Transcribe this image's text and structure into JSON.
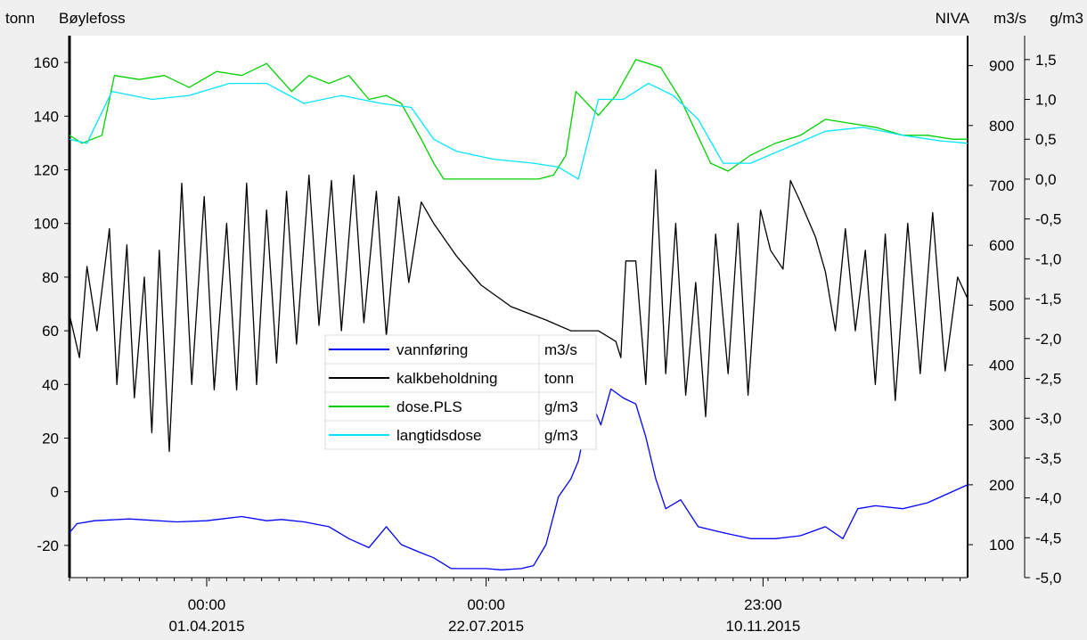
{
  "header": {
    "left_unit": "tonn",
    "site_name": "Bøylefoss",
    "source": "NIVA",
    "mid_unit": "m3/s",
    "right_unit": "g/m3"
  },
  "chart_data": {
    "type": "line",
    "title": "Bøylefoss",
    "x_range": [
      "2015-02-05",
      "2016-01-31"
    ],
    "x_ticks": [
      {
        "date": "2015-04-01",
        "time_label": "00:00",
        "date_label": "01.04.2015"
      },
      {
        "date": "2015-07-22",
        "time_label": "00:00",
        "date_label": "22.07.2015"
      },
      {
        "date": "2015-11-10",
        "time_label": "23:00",
        "date_label": "10.11.2015"
      }
    ],
    "axes": {
      "left": {
        "unit": "tonn",
        "range": [
          -32,
          170
        ],
        "ticks": [
          -20,
          0,
          20,
          40,
          60,
          80,
          100,
          120,
          140,
          160
        ],
        "tick_labels": [
          "-20",
          "0",
          "20",
          "40",
          "60",
          "80",
          "100",
          "120",
          "140",
          "160"
        ]
      },
      "mid": {
        "unit": "m3/s",
        "range": [
          45,
          950
        ],
        "ticks": [
          100,
          200,
          300,
          400,
          500,
          600,
          700,
          800,
          900
        ],
        "tick_labels": [
          "100",
          "200",
          "300",
          "400",
          "500",
          "600",
          "700",
          "800",
          "900"
        ]
      },
      "right": {
        "unit": "g/m3",
        "range": [
          -5.0,
          1.8
        ],
        "ticks": [
          -5.0,
          -4.5,
          -4.0,
          -3.5,
          -3.0,
          -2.5,
          -2.0,
          -1.5,
          -1.0,
          -0.5,
          0.0,
          0.5,
          1.0,
          1.5
        ],
        "tick_labels": [
          "-5,0",
          "-4,5",
          "-4,0",
          "-3,5",
          "-3,0",
          "-2,5",
          "-2,0",
          "-1,5",
          "-1,0",
          "-0,5",
          "0,0",
          "0,5",
          "1,0",
          "1,5"
        ]
      }
    },
    "legend_position": "center",
    "series": [
      {
        "name": "vannføring",
        "unit": "m3/s",
        "axis": "mid",
        "color": "#0000ff",
        "points": [
          [
            "2015-02-05",
            120
          ],
          [
            "2015-02-08",
            135
          ],
          [
            "2015-02-15",
            140
          ],
          [
            "2015-03-01",
            143
          ],
          [
            "2015-03-20",
            138
          ],
          [
            "2015-04-01",
            140
          ],
          [
            "2015-04-15",
            147
          ],
          [
            "2015-04-25",
            140
          ],
          [
            "2015-05-01",
            142
          ],
          [
            "2015-05-10",
            138
          ],
          [
            "2015-05-20",
            130
          ],
          [
            "2015-05-28",
            110
          ],
          [
            "2015-06-05",
            95
          ],
          [
            "2015-06-12",
            130
          ],
          [
            "2015-06-18",
            100
          ],
          [
            "2015-06-25",
            88
          ],
          [
            "2015-07-01",
            78
          ],
          [
            "2015-07-08",
            60
          ],
          [
            "2015-07-15",
            60
          ],
          [
            "2015-07-22",
            60
          ],
          [
            "2015-07-28",
            58
          ],
          [
            "2015-08-05",
            60
          ],
          [
            "2015-08-10",
            65
          ],
          [
            "2015-08-15",
            100
          ],
          [
            "2015-08-20",
            180
          ],
          [
            "2015-08-25",
            210
          ],
          [
            "2015-08-28",
            240
          ],
          [
            "2015-09-02",
            340
          ],
          [
            "2015-09-06",
            300
          ],
          [
            "2015-09-10",
            360
          ],
          [
            "2015-09-15",
            345
          ],
          [
            "2015-09-20",
            335
          ],
          [
            "2015-09-24",
            280
          ],
          [
            "2015-09-28",
            210
          ],
          [
            "2015-10-02",
            160
          ],
          [
            "2015-10-08",
            175
          ],
          [
            "2015-10-15",
            130
          ],
          [
            "2015-10-25",
            120
          ],
          [
            "2015-11-05",
            110
          ],
          [
            "2015-11-15",
            110
          ],
          [
            "2015-11-25",
            115
          ],
          [
            "2015-12-05",
            130
          ],
          [
            "2015-12-12",
            110
          ],
          [
            "2015-12-18",
            160
          ],
          [
            "2015-12-25",
            165
          ],
          [
            "2016-01-05",
            160
          ],
          [
            "2016-01-15",
            170
          ],
          [
            "2016-01-31",
            200
          ]
        ]
      },
      {
        "name": "kalkbeholdning",
        "unit": "tonn",
        "axis": "left",
        "color": "#000000",
        "points": [
          [
            "2015-02-05",
            66
          ],
          [
            "2015-02-09",
            50
          ],
          [
            "2015-02-12",
            84
          ],
          [
            "2015-02-16",
            60
          ],
          [
            "2015-02-21",
            98
          ],
          [
            "2015-02-24",
            40
          ],
          [
            "2015-02-28",
            92
          ],
          [
            "2015-03-03",
            35
          ],
          [
            "2015-03-07",
            80
          ],
          [
            "2015-03-10",
            22
          ],
          [
            "2015-03-13",
            90
          ],
          [
            "2015-03-17",
            15
          ],
          [
            "2015-03-22",
            115
          ],
          [
            "2015-03-26",
            40
          ],
          [
            "2015-03-31",
            110
          ],
          [
            "2015-04-04",
            38
          ],
          [
            "2015-04-09",
            100
          ],
          [
            "2015-04-13",
            38
          ],
          [
            "2015-04-17",
            115
          ],
          [
            "2015-04-21",
            40
          ],
          [
            "2015-04-25",
            105
          ],
          [
            "2015-04-29",
            48
          ],
          [
            "2015-05-03",
            112
          ],
          [
            "2015-05-07",
            55
          ],
          [
            "2015-05-12",
            118
          ],
          [
            "2015-05-16",
            62
          ],
          [
            "2015-05-21",
            116
          ],
          [
            "2015-05-25",
            60
          ],
          [
            "2015-05-30",
            118
          ],
          [
            "2015-06-03",
            63
          ],
          [
            "2015-06-08",
            112
          ],
          [
            "2015-06-12",
            58
          ],
          [
            "2015-06-17",
            110
          ],
          [
            "2015-06-21",
            78
          ],
          [
            "2015-06-26",
            108
          ],
          [
            "2015-07-01",
            100
          ],
          [
            "2015-07-10",
            88
          ],
          [
            "2015-07-20",
            77
          ],
          [
            "2015-08-01",
            69
          ],
          [
            "2015-08-15",
            64
          ],
          [
            "2015-08-25",
            60
          ],
          [
            "2015-09-05",
            60
          ],
          [
            "2015-09-12",
            56
          ],
          [
            "2015-09-14",
            50
          ],
          [
            "2015-09-16",
            86
          ],
          [
            "2015-09-20",
            86
          ],
          [
            "2015-09-24",
            40
          ],
          [
            "2015-09-28",
            120
          ],
          [
            "2015-10-02",
            44
          ],
          [
            "2015-10-06",
            100
          ],
          [
            "2015-10-10",
            36
          ],
          [
            "2015-10-14",
            78
          ],
          [
            "2015-10-18",
            28
          ],
          [
            "2015-10-22",
            96
          ],
          [
            "2015-10-27",
            44
          ],
          [
            "2015-10-31",
            100
          ],
          [
            "2015-11-04",
            36
          ],
          [
            "2015-11-09",
            105
          ],
          [
            "2015-11-13",
            90
          ],
          [
            "2015-11-18",
            83
          ],
          [
            "2015-11-21",
            116
          ],
          [
            "2015-11-25",
            108
          ],
          [
            "2015-12-01",
            95
          ],
          [
            "2015-12-05",
            82
          ],
          [
            "2015-12-09",
            60
          ],
          [
            "2015-12-13",
            98
          ],
          [
            "2015-12-17",
            60
          ],
          [
            "2015-12-21",
            90
          ],
          [
            "2015-12-25",
            40
          ],
          [
            "2015-12-29",
            96
          ],
          [
            "2016-01-02",
            34
          ],
          [
            "2016-01-07",
            100
          ],
          [
            "2016-01-12",
            44
          ],
          [
            "2016-01-17",
            104
          ],
          [
            "2016-01-22",
            45
          ],
          [
            "2016-01-27",
            80
          ],
          [
            "2016-01-31",
            72
          ]
        ]
      },
      {
        "name": "dose.PLS",
        "unit": "g/m3",
        "axis": "right",
        "color": "#00d000",
        "points": [
          [
            "2015-02-05",
            0.55
          ],
          [
            "2015-02-10",
            0.45
          ],
          [
            "2015-02-18",
            0.55
          ],
          [
            "2015-02-23",
            1.3
          ],
          [
            "2015-03-05",
            1.25
          ],
          [
            "2015-03-15",
            1.3
          ],
          [
            "2015-03-25",
            1.15
          ],
          [
            "2015-04-05",
            1.35
          ],
          [
            "2015-04-15",
            1.3
          ],
          [
            "2015-04-25",
            1.45
          ],
          [
            "2015-05-05",
            1.1
          ],
          [
            "2015-05-12",
            1.3
          ],
          [
            "2015-05-20",
            1.2
          ],
          [
            "2015-05-28",
            1.3
          ],
          [
            "2015-06-05",
            1.0
          ],
          [
            "2015-06-12",
            1.05
          ],
          [
            "2015-06-18",
            0.95
          ],
          [
            "2015-06-26",
            0.5
          ],
          [
            "2015-07-01",
            0.2
          ],
          [
            "2015-07-05",
            0.0
          ],
          [
            "2015-07-20",
            0.0
          ],
          [
            "2015-08-01",
            0.0
          ],
          [
            "2015-08-12",
            0.0
          ],
          [
            "2015-08-18",
            0.05
          ],
          [
            "2015-08-23",
            0.3
          ],
          [
            "2015-08-27",
            1.1
          ],
          [
            "2015-09-05",
            0.8
          ],
          [
            "2015-09-12",
            1.05
          ],
          [
            "2015-09-20",
            1.5
          ],
          [
            "2015-09-30",
            1.4
          ],
          [
            "2015-10-08",
            1.0
          ],
          [
            "2015-10-14",
            0.6
          ],
          [
            "2015-10-20",
            0.2
          ],
          [
            "2015-10-27",
            0.1
          ],
          [
            "2015-11-05",
            0.3
          ],
          [
            "2015-11-15",
            0.45
          ],
          [
            "2015-11-25",
            0.55
          ],
          [
            "2015-12-05",
            0.75
          ],
          [
            "2015-12-15",
            0.7
          ],
          [
            "2015-12-25",
            0.65
          ],
          [
            "2016-01-05",
            0.55
          ],
          [
            "2016-01-15",
            0.55
          ],
          [
            "2016-01-25",
            0.5
          ],
          [
            "2016-01-31",
            0.5
          ]
        ]
      },
      {
        "name": "langtidsdose",
        "unit": "g/m3",
        "axis": "right",
        "color": "#00e5ff",
        "points": [
          [
            "2015-02-05",
            0.5
          ],
          [
            "2015-02-12",
            0.45
          ],
          [
            "2015-02-22",
            1.1
          ],
          [
            "2015-03-10",
            1.0
          ],
          [
            "2015-03-25",
            1.05
          ],
          [
            "2015-04-10",
            1.2
          ],
          [
            "2015-04-25",
            1.2
          ],
          [
            "2015-05-10",
            0.95
          ],
          [
            "2015-05-25",
            1.05
          ],
          [
            "2015-06-10",
            0.95
          ],
          [
            "2015-06-22",
            0.9
          ],
          [
            "2015-07-01",
            0.5
          ],
          [
            "2015-07-10",
            0.35
          ],
          [
            "2015-07-25",
            0.25
          ],
          [
            "2015-08-10",
            0.2
          ],
          [
            "2015-08-20",
            0.15
          ],
          [
            "2015-08-28",
            0.0
          ],
          [
            "2015-09-05",
            1.0
          ],
          [
            "2015-09-15",
            1.0
          ],
          [
            "2015-09-25",
            1.2
          ],
          [
            "2015-10-05",
            1.05
          ],
          [
            "2015-10-15",
            0.75
          ],
          [
            "2015-10-25",
            0.2
          ],
          [
            "2015-11-05",
            0.2
          ],
          [
            "2015-11-20",
            0.4
          ],
          [
            "2015-12-05",
            0.6
          ],
          [
            "2015-12-20",
            0.65
          ],
          [
            "2016-01-05",
            0.55
          ],
          [
            "2016-01-20",
            0.48
          ],
          [
            "2016-01-31",
            0.45
          ]
        ]
      }
    ]
  }
}
